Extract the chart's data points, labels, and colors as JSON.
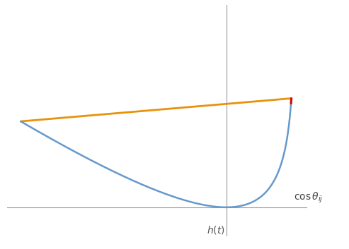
{
  "blue_color": "#6699cc",
  "orange_color": "#e8920a",
  "red_color": "#cc1100",
  "axis_color": "#999999",
  "bg_color": "#ffffff",
  "figsize": [
    4.93,
    3.53
  ],
  "dpi": 100,
  "t_min": -3.0,
  "cos_theta": 0.95,
  "xlim": [
    -3.2,
    1.18
  ],
  "ylim": [
    -0.55,
    3.8
  ],
  "x_axis_y": 0.0,
  "y_axis_x": 0.0
}
